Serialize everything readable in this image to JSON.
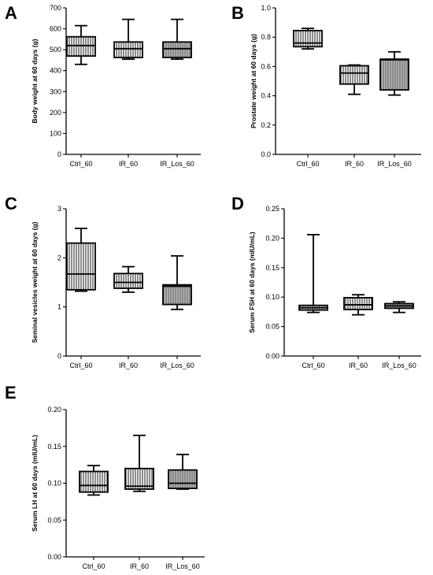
{
  "chart_data": [
    {
      "panel": "A",
      "type": "box",
      "categories": [
        "Ctrl_60",
        "IR_60",
        "IR_Los_60"
      ],
      "ylabel": "Body weight at 60 days (g)",
      "ylim": [
        0,
        700
      ],
      "yticks": [
        "0",
        "100",
        "200",
        "300",
        "400",
        "500",
        "600",
        "700"
      ],
      "boxes": [
        {
          "min": 430,
          "q1": 470,
          "median": 520,
          "q3": 562,
          "max": 615
        },
        {
          "min": 455,
          "q1": 463,
          "median": 505,
          "q3": 537,
          "max": 645
        },
        {
          "min": 455,
          "q1": 463,
          "median": 505,
          "q3": 537,
          "max": 645
        }
      ]
    },
    {
      "panel": "B",
      "type": "box",
      "categories": [
        "Ctrl_60",
        "IR_60",
        "IR_Los_60"
      ],
      "ylabel": "Prostate weight at 60 days (g)",
      "ylim": [
        0,
        1.0
      ],
      "yticks": [
        "0.0",
        "0.2",
        "0.4",
        "0.6",
        "0.8",
        "1.0"
      ],
      "boxes": [
        {
          "min": 0.72,
          "q1": 0.735,
          "median": 0.76,
          "q3": 0.845,
          "max": 0.86
        },
        {
          "min": 0.41,
          "q1": 0.48,
          "median": 0.555,
          "q3": 0.605,
          "max": 0.61
        },
        {
          "min": 0.405,
          "q1": 0.44,
          "median": 0.645,
          "q3": 0.65,
          "max": 0.7
        }
      ]
    },
    {
      "panel": "C",
      "type": "box",
      "categories": [
        "Ctrl_60",
        "IR_60",
        "IR_Los_60"
      ],
      "ylabel": "Seminal vesicles weight at 60 days (g)",
      "ylim": [
        0,
        3
      ],
      "yticks": [
        "0",
        "1",
        "2",
        "3"
      ],
      "boxes": [
        {
          "min": 1.32,
          "q1": 1.35,
          "median": 1.67,
          "q3": 2.3,
          "max": 2.6
        },
        {
          "min": 1.3,
          "q1": 1.38,
          "median": 1.5,
          "q3": 1.68,
          "max": 1.82
        },
        {
          "min": 0.95,
          "q1": 1.05,
          "median": 1.42,
          "q3": 1.45,
          "max": 2.04
        }
      ]
    },
    {
      "panel": "D",
      "type": "box",
      "categories": [
        "Ctrl_60",
        "IR_60",
        "IR_Los_60"
      ],
      "ylabel": "Serum FSH at 60 days (mIU/mL)",
      "ylim": [
        0,
        0.25
      ],
      "yticks": [
        "0.00",
        "0.05",
        "0.10",
        "0.15",
        "0.20",
        "0.25"
      ],
      "boxes": [
        {
          "min": 0.074,
          "q1": 0.078,
          "median": 0.082,
          "q3": 0.086,
          "max": 0.206
        },
        {
          "min": 0.07,
          "q1": 0.079,
          "median": 0.087,
          "q3": 0.099,
          "max": 0.104
        },
        {
          "min": 0.074,
          "q1": 0.081,
          "median": 0.085,
          "q3": 0.089,
          "max": 0.092
        }
      ]
    },
    {
      "panel": "E",
      "type": "box",
      "categories": [
        "Ctrl_60",
        "IR_60",
        "IR_Los_60"
      ],
      "ylabel": "Serum LH at 60 days (mIU/mL)",
      "ylim": [
        0,
        0.2
      ],
      "yticks": [
        "0.00",
        "0.05",
        "0.10",
        "0.15",
        "0.20"
      ],
      "boxes": [
        {
          "min": 0.084,
          "q1": 0.088,
          "median": 0.097,
          "q3": 0.116,
          "max": 0.124
        },
        {
          "min": 0.089,
          "q1": 0.092,
          "median": 0.096,
          "q3": 0.12,
          "max": 0.165
        },
        {
          "min": 0.092,
          "q1": 0.093,
          "median": 0.1,
          "q3": 0.118,
          "max": 0.139
        }
      ]
    }
  ]
}
